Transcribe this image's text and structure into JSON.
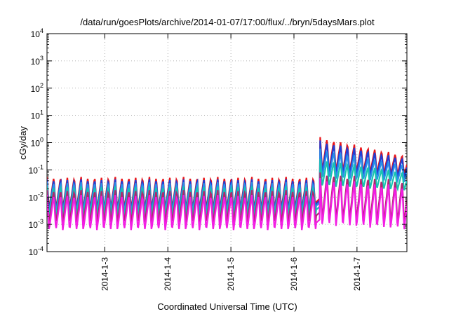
{
  "chart_data": {
    "type": "line",
    "title": "/data/run/goesPlots/archive/2014-01-07/17:00/flux/../bryn/5daysMars.plot",
    "xlabel": "Coordinated Universal Time (UTC)",
    "ylabel": "cGy/day",
    "y_scale": "log",
    "ylim": [
      0.0001,
      10000
    ],
    "y_ticks": [
      {
        "value": 0.0001,
        "base": "10",
        "exp": "-4"
      },
      {
        "value": 0.001,
        "base": "10",
        "exp": "-3"
      },
      {
        "value": 0.01,
        "base": "10",
        "exp": "-2"
      },
      {
        "value": 0.1,
        "base": "10",
        "exp": "-1"
      },
      {
        "value": 1,
        "base": "10",
        "exp": "0"
      },
      {
        "value": 10,
        "base": "10",
        "exp": "1"
      },
      {
        "value": 100,
        "base": "10",
        "exp": "2"
      },
      {
        "value": 1000,
        "base": "10",
        "exp": "3"
      },
      {
        "value": 10000,
        "base": "10",
        "exp": "4"
      }
    ],
    "xlim": [
      "2014-01-02 02:00",
      "2014-01-07 19:00"
    ],
    "x_ticks": [
      "2014-1-3",
      "2014-1-4",
      "2014-1-5",
      "2014-1-6",
      "2014-1-7"
    ],
    "x_tick_values": [
      "2014-01-03 00:00",
      "2014-01-04 00:00",
      "2014-01-05 00:00",
      "2014-01-06 00:00",
      "2014-01-07 00:00"
    ],
    "grid": true,
    "legend": "none",
    "event_time": "2014-01-06 10:00",
    "oscillation_period_hours": 2.6,
    "series": [
      {
        "color": "#e8161b",
        "baseline_low": 0.0035,
        "baseline_high": 0.055,
        "event_low": 0.09,
        "event_peak": 1.6,
        "event_end_high": 0.32
      },
      {
        "color": "#1f3fd6",
        "baseline_low": 0.003,
        "baseline_high": 0.045,
        "event_low": 0.07,
        "event_peak": 1.2,
        "event_end_high": 0.25
      },
      {
        "color": "#2a90e8",
        "baseline_low": 0.0025,
        "baseline_high": 0.035,
        "event_low": 0.05,
        "event_peak": 0.6,
        "event_end_high": 0.15
      },
      {
        "color": "#17c4b0",
        "baseline_low": 0.0018,
        "baseline_high": 0.025,
        "event_low": 0.025,
        "event_peak": 0.25,
        "event_end_high": 0.08
      },
      {
        "color": "#b0266e",
        "baseline_low": 0.0011,
        "baseline_high": 0.018,
        "event_low": 0.0015,
        "event_peak": 0.08,
        "event_end_high": 0.04
      },
      {
        "color": "#f21ee3",
        "baseline_low": 0.0006,
        "baseline_high": 0.012,
        "event_low": 0.0009,
        "event_peak": 0.05,
        "event_end_high": 0.025
      }
    ]
  }
}
